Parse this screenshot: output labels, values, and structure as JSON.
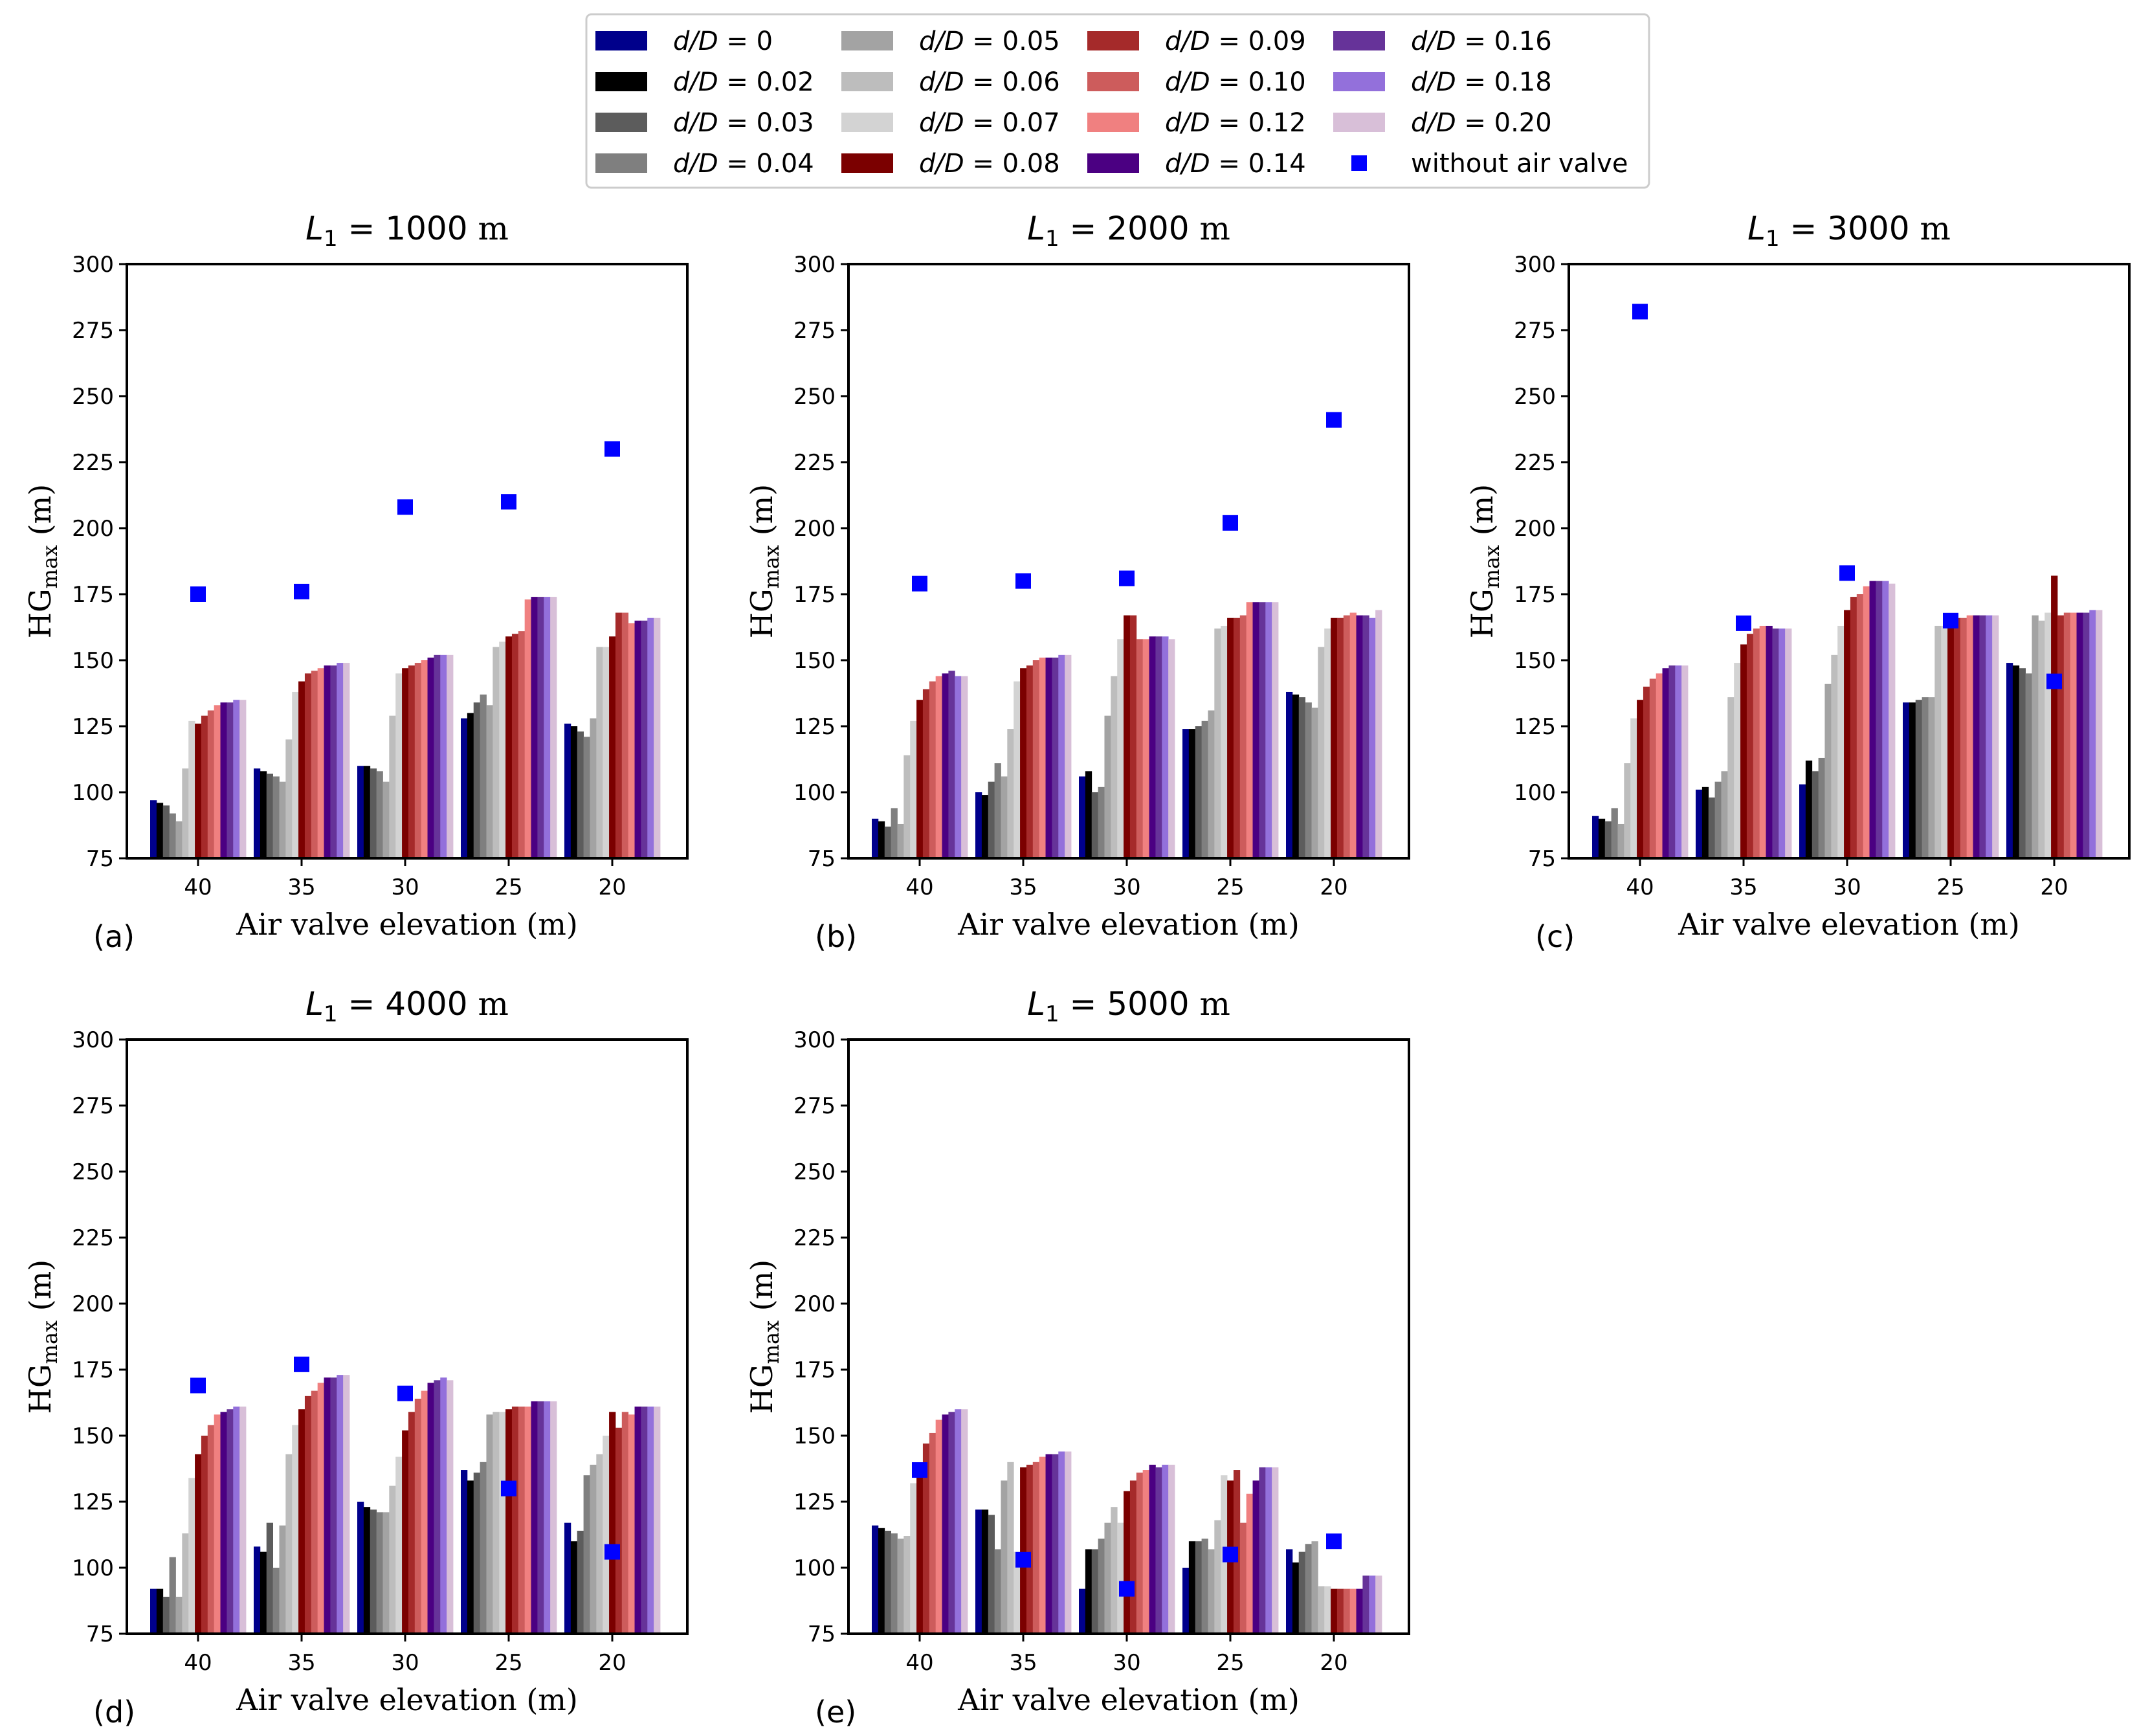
{
  "chart_data": {
    "type": "bar",
    "categories": [
      "40",
      "35",
      "30",
      "25",
      "20"
    ],
    "xlabel": "Air valve elevation (m)",
    "ylabel": "HG",
    "ylabel_sub": "max",
    "ylabel_unit": " (m)",
    "ylim": [
      75,
      300
    ],
    "yticks": [
      75,
      100,
      125,
      150,
      175,
      200,
      225,
      250,
      275,
      300
    ],
    "legend_series_label": "d/D",
    "legend_scatter_label": "without air valve",
    "series": [
      {
        "name": "0",
        "color": "#00008b"
      },
      {
        "name": "0.02",
        "color": "#000000"
      },
      {
        "name": "0.03",
        "color": "#5c5c5c"
      },
      {
        "name": "0.04",
        "color": "#7f7f7f"
      },
      {
        "name": "0.05",
        "color": "#a3a3a3"
      },
      {
        "name": "0.06",
        "color": "#bdbdbd"
      },
      {
        "name": "0.07",
        "color": "#d3d3d3"
      },
      {
        "name": "0.08",
        "color": "#7b0000"
      },
      {
        "name": "0.09",
        "color": "#a52a2a"
      },
      {
        "name": "0.10",
        "color": "#cd5c5c"
      },
      {
        "name": "0.12",
        "color": "#f08080"
      },
      {
        "name": "0.14",
        "color": "#4b0082"
      },
      {
        "name": "0.16",
        "color": "#663399"
      },
      {
        "name": "0.18",
        "color": "#9370db"
      },
      {
        "name": "0.20",
        "color": "#d8bfd8"
      }
    ],
    "scatter_color": "#0000ff",
    "panels": [
      {
        "letter": "(a)",
        "L1": "1000",
        "values": [
          [
            97,
            96,
            95,
            92,
            89,
            109,
            127,
            126,
            129,
            131,
            133,
            134,
            134,
            135,
            135
          ],
          [
            109,
            108,
            107,
            106,
            104,
            120,
            138,
            142,
            145,
            146,
            147,
            148,
            148,
            149,
            149
          ],
          [
            110,
            110,
            109,
            108,
            104,
            129,
            145,
            147,
            148,
            149,
            150,
            151,
            152,
            152,
            152
          ],
          [
            128,
            130,
            134,
            137,
            133,
            155,
            157,
            159,
            160,
            161,
            173,
            174,
            174,
            174,
            174
          ],
          [
            126,
            125,
            123,
            121,
            128,
            155,
            155,
            159,
            168,
            168,
            164,
            165,
            165,
            166,
            166
          ]
        ],
        "no_valve": [
          175,
          176,
          208,
          210,
          230
        ]
      },
      {
        "letter": "(b)",
        "L1": "2000",
        "values": [
          [
            90,
            89,
            87,
            94,
            88,
            114,
            127,
            135,
            139,
            142,
            144,
            145,
            146,
            144,
            144
          ],
          [
            100,
            99,
            104,
            111,
            106,
            124,
            142,
            147,
            148,
            150,
            151,
            151,
            151,
            152,
            152
          ],
          [
            106,
            108,
            100,
            102,
            129,
            144,
            158,
            167,
            167,
            158,
            158,
            159,
            159,
            159,
            158
          ],
          [
            124,
            124,
            125,
            127,
            131,
            162,
            163,
            166,
            166,
            167,
            172,
            172,
            172,
            172,
            172
          ],
          [
            138,
            137,
            136,
            134,
            132,
            155,
            162,
            166,
            166,
            167,
            168,
            167,
            167,
            166,
            169
          ]
        ],
        "no_valve": [
          179,
          180,
          181,
          202,
          241
        ]
      },
      {
        "letter": "(c)",
        "L1": "3000",
        "values": [
          [
            91,
            90,
            89,
            94,
            88,
            111,
            128,
            135,
            140,
            143,
            145,
            147,
            148,
            148,
            148
          ],
          [
            101,
            102,
            98,
            104,
            108,
            136,
            149,
            156,
            160,
            162,
            163,
            163,
            162,
            162,
            162
          ],
          [
            103,
            112,
            108,
            113,
            141,
            152,
            163,
            169,
            174,
            175,
            178,
            180,
            180,
            180,
            179
          ],
          [
            134,
            134,
            135,
            136,
            136,
            163,
            163,
            164,
            166,
            166,
            167,
            167,
            167,
            167,
            167
          ],
          [
            149,
            148,
            147,
            145,
            167,
            165,
            168,
            182,
            167,
            168,
            168,
            168,
            168,
            169,
            169
          ]
        ],
        "no_valve": [
          282,
          164,
          183,
          165,
          142
        ]
      },
      {
        "letter": "(d)",
        "L1": "4000",
        "values": [
          [
            92,
            92,
            89,
            104,
            89,
            113,
            134,
            143,
            150,
            154,
            158,
            159,
            160,
            161,
            161
          ],
          [
            108,
            106,
            117,
            100,
            116,
            143,
            154,
            160,
            165,
            167,
            170,
            172,
            172,
            173,
            173
          ],
          [
            125,
            123,
            122,
            121,
            121,
            131,
            142,
            152,
            159,
            164,
            167,
            170,
            171,
            172,
            171
          ],
          [
            137,
            133,
            136,
            140,
            158,
            159,
            159,
            160,
            161,
            161,
            161,
            163,
            163,
            163,
            163
          ],
          [
            117,
            110,
            114,
            135,
            139,
            143,
            150,
            159,
            153,
            159,
            158,
            161,
            161,
            161,
            161
          ]
        ],
        "no_valve": [
          169,
          177,
          166,
          130,
          106
        ]
      },
      {
        "letter": "(e)",
        "L1": "5000",
        "values": [
          [
            116,
            115,
            114,
            113,
            111,
            112,
            132,
            138,
            147,
            151,
            156,
            158,
            159,
            160,
            160
          ],
          [
            122,
            122,
            120,
            107,
            133,
            140,
            106,
            138,
            139,
            140,
            142,
            143,
            143,
            144,
            144
          ],
          [
            92,
            107,
            107,
            111,
            117,
            123,
            117,
            129,
            133,
            136,
            137,
            139,
            138,
            139,
            139
          ],
          [
            100,
            110,
            110,
            111,
            107,
            118,
            135,
            133,
            137,
            117,
            128,
            133,
            138,
            138,
            138
          ],
          [
            107,
            102,
            106,
            109,
            110,
            93,
            93,
            92,
            92,
            92,
            92,
            92,
            97,
            97,
            97
          ]
        ],
        "no_valve": [
          137,
          103,
          92,
          105,
          110
        ]
      }
    ]
  }
}
